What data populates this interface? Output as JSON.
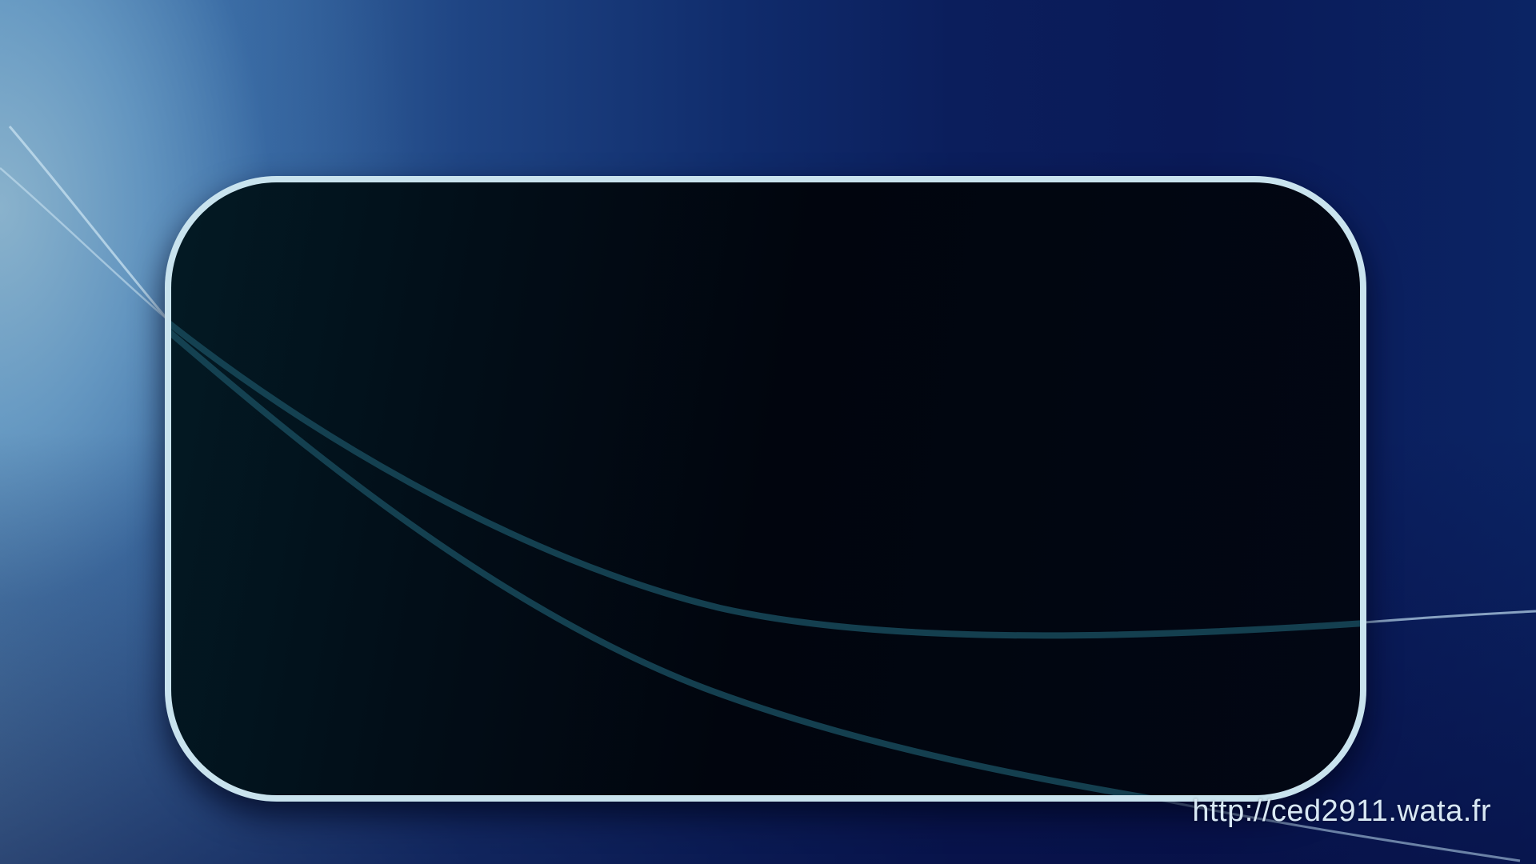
{
  "watermark": {
    "url_text": "http://ced2911.wata.fr"
  },
  "colors": {
    "panel_border": "#c9e3ee",
    "panel_fill": "#01050e",
    "curve_color": "#1c5a6a",
    "background_left": "#5b8fb8",
    "background_right": "#0a1a58"
  },
  "icons": {
    "decorative_curves": "swoosh-lines"
  }
}
